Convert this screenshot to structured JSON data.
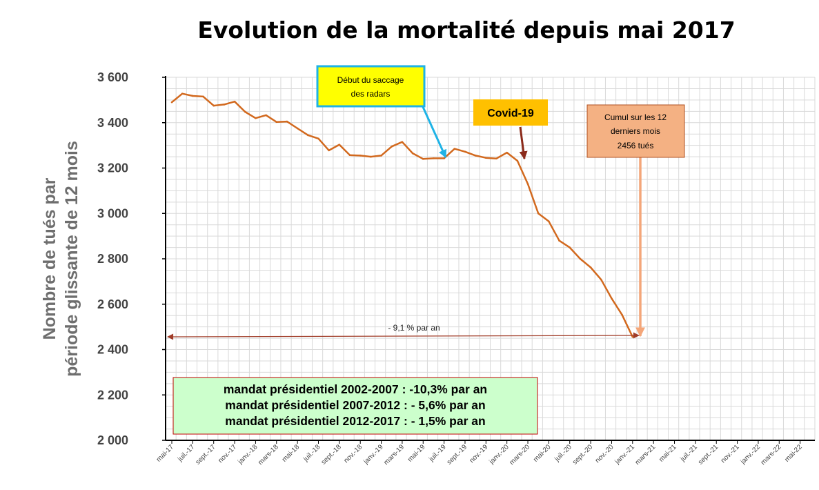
{
  "chart_data": {
    "type": "line",
    "title": "Evolution de la mortalité depuis mai 2017",
    "ylabel_lines": [
      "Nombre de tués par",
      "période  glissante de 12 mois"
    ],
    "ylim": [
      2000,
      3600
    ],
    "yticks": [
      2000,
      2200,
      2400,
      2600,
      2800,
      3000,
      3200,
      3400,
      3600
    ],
    "ytick_labels": [
      "2 000",
      "2 200",
      "2 400",
      "2 600",
      "2 800",
      "3 000",
      "3 200",
      "3 400",
      "3 600"
    ],
    "x_tick_labels": [
      "mai-17",
      "juil.-17",
      "sept.-17",
      "nov.-17",
      "janv.-18",
      "mars-18",
      "mai-18",
      "juil.-18",
      "sept.-18",
      "nov.-18",
      "janv.-19",
      "mars-19",
      "mai-19",
      "juil.-19",
      "sept.-19",
      "nov.-19",
      "janv.-20",
      "mars-20",
      "mai-20",
      "juil.-20",
      "sept.-20",
      "nov.-20",
      "janv.-21",
      "mars-21",
      "mai-21",
      "juil.-21",
      "sept.-21",
      "nov.-21",
      "janv.-22",
      "mars-22",
      "mai-22"
    ],
    "grid": true,
    "line_color": "#d2691e",
    "series": [
      {
        "months": [
          "mai-17",
          "juin-17",
          "juil.-17",
          "août-17",
          "sept.-17",
          "oct.-17",
          "nov.-17",
          "déc.-17",
          "janv.-18",
          "févr.-18",
          "mars-18",
          "avr.-18",
          "mai-18",
          "juin-18",
          "juil.-18",
          "août-18",
          "sept.-18",
          "oct.-18",
          "nov.-18",
          "déc.-18",
          "janv.-19",
          "févr.-19",
          "mars-19",
          "avr.-19",
          "mai-19",
          "juin-19",
          "juil.-19",
          "août-19",
          "sept.-19",
          "oct.-19",
          "nov.-19",
          "déc.-19",
          "janv.-20",
          "févr.-20",
          "mars-20",
          "avr.-20",
          "mai-20",
          "juin-20",
          "juil.-20",
          "août-20",
          "sept.-20",
          "oct.-20",
          "nov.-20",
          "déc.-20",
          "janv.-21"
        ],
        "values": [
          3490,
          3528,
          3518,
          3515,
          3475,
          3480,
          3493,
          3448,
          3420,
          3433,
          3403,
          3405,
          3375,
          3345,
          3330,
          3278,
          3303,
          3257,
          3255,
          3250,
          3255,
          3295,
          3315,
          3265,
          3240,
          3243,
          3243,
          3285,
          3272,
          3255,
          3245,
          3242,
          3268,
          3232,
          3130,
          3000,
          2965,
          2880,
          2850,
          2800,
          2762,
          2708,
          2625,
          2553,
          2456
        ]
      }
    ],
    "annotations": {
      "radars": [
        "Début du saccage",
        "des radars"
      ],
      "covid": "Covid-19",
      "cumul": [
        "Cumul sur les 12",
        "derniers mois",
        "2456 tués"
      ],
      "trend": "- 9,1 % par an",
      "mandats": [
        "mandat présidentiel 2002-2007 : -10,3% par an",
        "mandat présidentiel 2007-2012 : - 5,6% par an",
        "mandat présidentiel 2012-2017 : - 1,5% par an"
      ]
    },
    "colors": {
      "radars_box_fill": "#ffff00",
      "radars_box_border": "#1fb3e6",
      "covid_box_fill": "#ffc000",
      "cumul_box_fill": "#f4b183",
      "mandat_box_fill": "#ccffcc",
      "mandat_box_border": "#c00000"
    }
  }
}
